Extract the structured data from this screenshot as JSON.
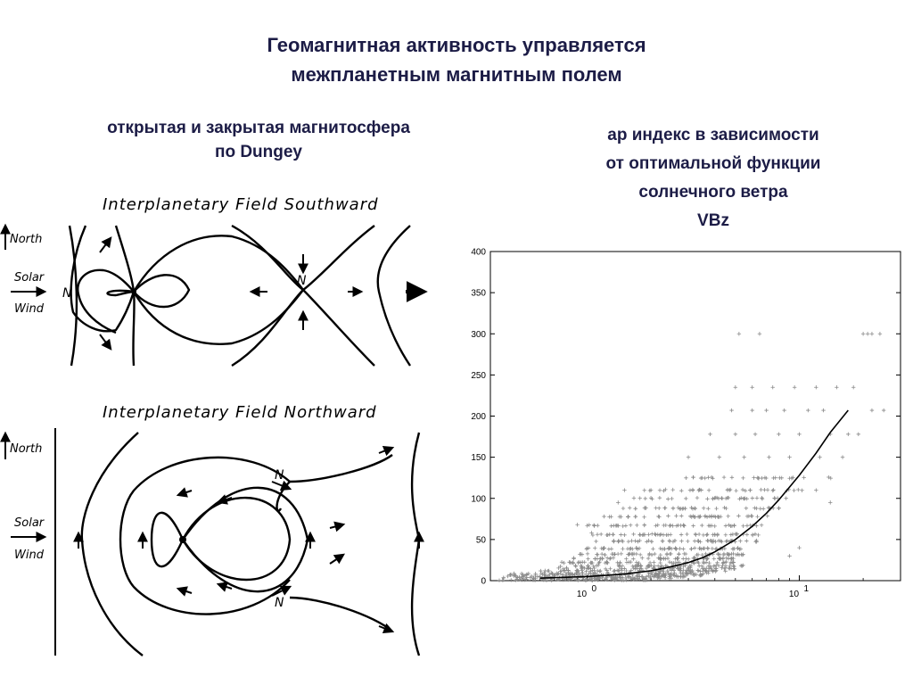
{
  "slide": {
    "title_line1": "Геомагнитная активность управляется",
    "title_line2": "межпланетным магнитным полем",
    "left_caption_line1": "открытая и закрытая магнитосфера",
    "left_caption_line2": "по Dungey",
    "right_caption_line1": "ap индекс в зависимости",
    "right_caption_line2": "от оптимальной функции",
    "right_caption_line3": "солнечного ветра",
    "right_caption_line4": "VBz"
  },
  "diagram_south": {
    "title": "Interplanetary Field Southward",
    "north_label": "North",
    "solar_label": "Solar",
    "wind_label": "Wind",
    "n_left": "N",
    "n_right": "N"
  },
  "diagram_north": {
    "title": "Interplanetary Field Northward",
    "north_label": "North",
    "solar_label": "Solar",
    "wind_label": "Wind",
    "n_top": "N",
    "n_bottom": "N"
  },
  "chart_data": {
    "type": "scatter",
    "x_scale": "log",
    "xlim": [
      0.35,
      30
    ],
    "ylim": [
      0,
      400
    ],
    "y_ticks": [
      0,
      50,
      100,
      150,
      200,
      250,
      300,
      350,
      400
    ],
    "x_tick_labels": [
      {
        "base": "10",
        "exp": "0",
        "value": 1
      },
      {
        "base": "10",
        "exp": "1",
        "value": 10
      }
    ],
    "marker": "+",
    "point_color": "#8a8a8a",
    "curve_color": "#000000",
    "curve": {
      "x": [
        0.6,
        1.0,
        1.5,
        2.0,
        2.5,
        3.0,
        3.5,
        4.0,
        5.0,
        6.0,
        7.0,
        8.0,
        10.0,
        12.0,
        14.0,
        17.0
      ],
      "y": [
        3,
        5,
        8,
        12,
        17,
        22,
        28,
        35,
        50,
        66,
        82,
        98,
        128,
        155,
        180,
        207
      ]
    },
    "sparse_points": [
      {
        "x": 5.2,
        "y": 300
      },
      {
        "x": 6.5,
        "y": 300
      },
      {
        "x": 20,
        "y": 300
      },
      {
        "x": 21,
        "y": 300
      },
      {
        "x": 22,
        "y": 300
      },
      {
        "x": 24,
        "y": 300
      },
      {
        "x": 5.0,
        "y": 235
      },
      {
        "x": 6.0,
        "y": 235
      },
      {
        "x": 7.5,
        "y": 235
      },
      {
        "x": 9.5,
        "y": 235
      },
      {
        "x": 12,
        "y": 235
      },
      {
        "x": 15,
        "y": 235
      },
      {
        "x": 18,
        "y": 235
      },
      {
        "x": 4.8,
        "y": 207
      },
      {
        "x": 6.0,
        "y": 207
      },
      {
        "x": 7.0,
        "y": 207
      },
      {
        "x": 8.5,
        "y": 207
      },
      {
        "x": 11,
        "y": 207
      },
      {
        "x": 13,
        "y": 207
      },
      {
        "x": 22,
        "y": 207
      },
      {
        "x": 25,
        "y": 207
      },
      {
        "x": 3.8,
        "y": 178
      },
      {
        "x": 5.0,
        "y": 178
      },
      {
        "x": 6.2,
        "y": 178
      },
      {
        "x": 8.0,
        "y": 178
      },
      {
        "x": 10,
        "y": 178
      },
      {
        "x": 14,
        "y": 178
      },
      {
        "x": 17,
        "y": 178
      },
      {
        "x": 19,
        "y": 178
      },
      {
        "x": 3.0,
        "y": 150
      },
      {
        "x": 4.2,
        "y": 150
      },
      {
        "x": 5.5,
        "y": 150
      },
      {
        "x": 7.2,
        "y": 150
      },
      {
        "x": 9.0,
        "y": 150
      },
      {
        "x": 12.5,
        "y": 150
      },
      {
        "x": 16,
        "y": 150
      },
      {
        "x": 1.5,
        "y": 110
      },
      {
        "x": 2.0,
        "y": 110
      },
      {
        "x": 12,
        "y": 110
      },
      {
        "x": 1.4,
        "y": 95
      },
      {
        "x": 14,
        "y": 95
      },
      {
        "x": 0.9,
        "y": 68
      },
      {
        "x": 1.05,
        "y": 58
      },
      {
        "x": 10,
        "y": 40
      },
      {
        "x": 9,
        "y": 30
      }
    ],
    "dense_bands": [
      {
        "y": 125,
        "x_from": 2.5,
        "x_to": 15,
        "count": 30
      },
      {
        "y": 110,
        "x_from": 1.8,
        "x_to": 11,
        "count": 34
      },
      {
        "y": 100,
        "x_from": 1.6,
        "x_to": 9,
        "count": 36
      },
      {
        "y": 88,
        "x_from": 1.3,
        "x_to": 8.5,
        "count": 40
      },
      {
        "y": 78,
        "x_from": 1.2,
        "x_to": 7.5,
        "count": 44
      },
      {
        "y": 67,
        "x_from": 1.0,
        "x_to": 7,
        "count": 48
      },
      {
        "y": 56,
        "x_from": 1.0,
        "x_to": 6.5,
        "count": 52
      },
      {
        "y": 48,
        "x_from": 1.0,
        "x_to": 6.5,
        "count": 56
      },
      {
        "y": 39,
        "x_from": 0.9,
        "x_to": 5.5,
        "count": 60
      },
      {
        "y": 32,
        "x_from": 0.9,
        "x_to": 5.5,
        "count": 62
      },
      {
        "y": 27,
        "x_from": 0.8,
        "x_to": 5,
        "count": 62
      },
      {
        "y": 22,
        "x_from": 0.75,
        "x_to": 5,
        "count": 62
      },
      {
        "y": 18,
        "x_from": 0.7,
        "x_to": 5.5,
        "count": 62
      },
      {
        "y": 15,
        "x_from": 0.65,
        "x_to": 5,
        "count": 62
      },
      {
        "y": 12,
        "x_from": 0.55,
        "x_to": 4.5,
        "count": 66
      },
      {
        "y": 9,
        "x_from": 0.45,
        "x_to": 4,
        "count": 66
      },
      {
        "y": 7,
        "x_from": 0.42,
        "x_to": 3.5,
        "count": 66
      },
      {
        "y": 5,
        "x_from": 0.4,
        "x_to": 3,
        "count": 66
      },
      {
        "y": 3,
        "x_from": 0.38,
        "x_to": 2.5,
        "count": 66
      },
      {
        "y": 1,
        "x_from": 0.36,
        "x_to": 2,
        "count": 66
      }
    ]
  }
}
